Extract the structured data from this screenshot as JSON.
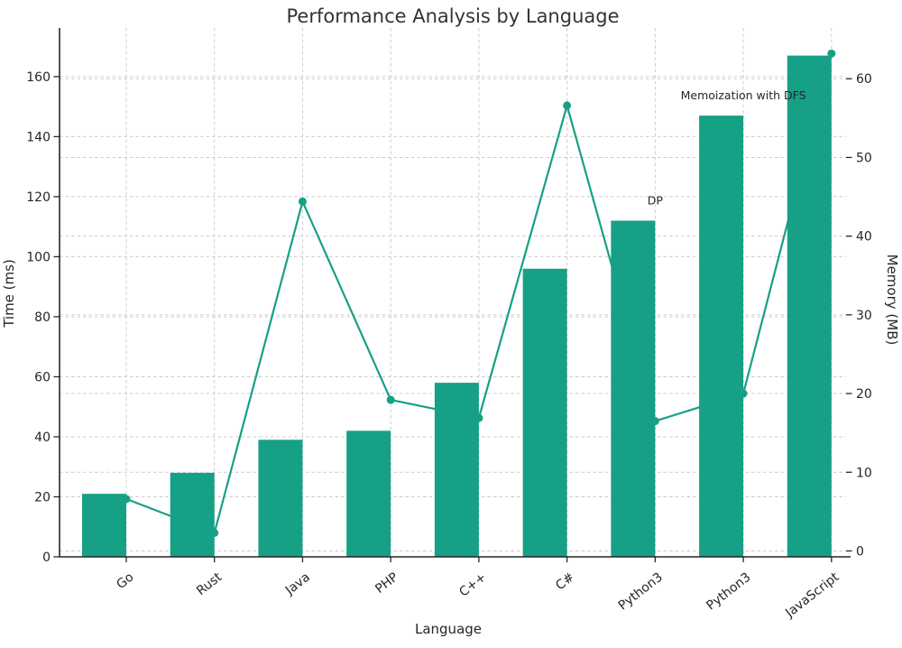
{
  "figure": {
    "title": "Performance Analysis by Language",
    "background": "#ffffff"
  },
  "chart_data": {
    "type": "bar",
    "title": "Performance Analysis by Language",
    "xlabel": "Language",
    "ylabel_left": "Time (ms)",
    "ylabel_right": "Memory (MB)",
    "categories": [
      "Go",
      "Rust",
      "Java",
      "PHP",
      "C++",
      "C#",
      "Python3",
      "Python3",
      "JavaScript"
    ],
    "series": [
      {
        "name": "Time (ms)",
        "type": "bar",
        "axis": "left",
        "values": [
          21,
          28,
          39,
          42,
          58,
          96,
          112,
          147,
          167
        ]
      },
      {
        "name": "Memory (MB)",
        "type": "line",
        "axis": "right",
        "values": [
          6.6,
          2.3,
          44.4,
          19.2,
          16.9,
          56.6,
          16.5,
          20.0,
          63.2
        ]
      }
    ],
    "yticks_left": [
      0,
      20,
      40,
      60,
      80,
      100,
      120,
      140,
      160
    ],
    "yticks_right": [
      0,
      10,
      20,
      30,
      40,
      50,
      60
    ],
    "ylim_left": [
      0,
      176.2
    ],
    "ylim_right": [
      -0.75,
      66.45
    ],
    "grid": true,
    "grid_style": "dashed",
    "legend_position": "none",
    "annotations": [
      {
        "text": "DP",
        "category_index": 6
      },
      {
        "text": "Memoization with DFS",
        "category_index": 7
      }
    ],
    "colors": {
      "accent": "#16a085",
      "grid": "#cccccc",
      "spine": "#262626",
      "title_text": "#333333",
      "tick_text": "#262626"
    }
  }
}
